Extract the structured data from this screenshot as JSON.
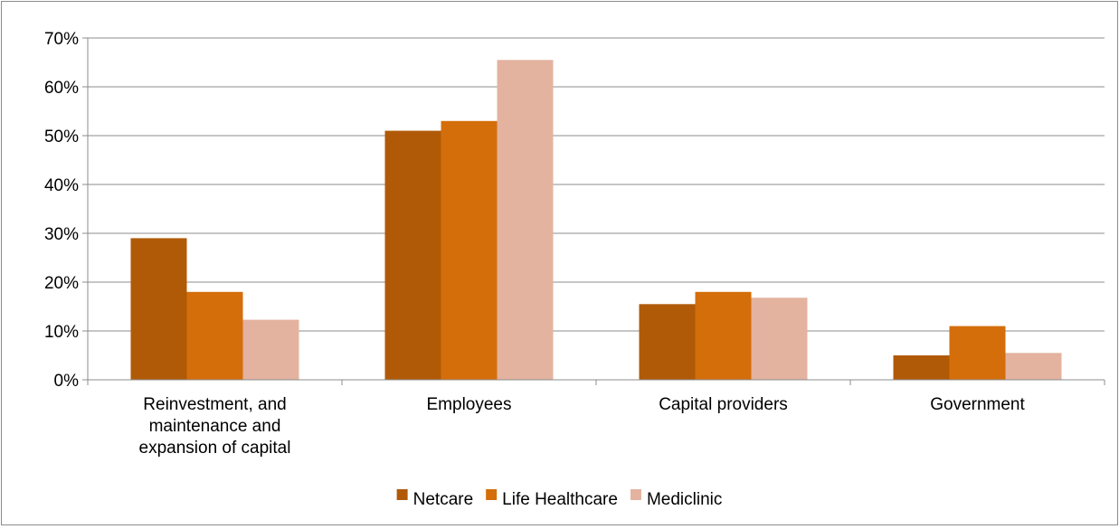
{
  "chart_data": {
    "type": "bar",
    "categories": [
      [
        "Reinvestment, and",
        "maintenance and",
        "expansion of capital"
      ],
      [
        "Employees"
      ],
      [
        "Capital providers"
      ],
      [
        "Government"
      ]
    ],
    "series": [
      {
        "name": "Netcare",
        "values": [
          29,
          51,
          15.5,
          5
        ],
        "color": "#b05a08"
      },
      {
        "name": "Life Healthcare",
        "values": [
          18,
          53,
          18,
          11
        ],
        "color": "#d46e0b"
      },
      {
        "name": "Mediclinic",
        "values": [
          12.3,
          65.5,
          16.8,
          5.5
        ],
        "color": "#e3b3a0"
      }
    ],
    "ylim": [
      0,
      70
    ],
    "yticks": [
      0,
      10,
      20,
      30,
      40,
      50,
      60,
      70
    ],
    "ytick_labels": [
      "0%",
      "10%",
      "20%",
      "30%",
      "40%",
      "50%",
      "60%",
      "70%"
    ],
    "grid": true,
    "legend_position": "bottom"
  }
}
